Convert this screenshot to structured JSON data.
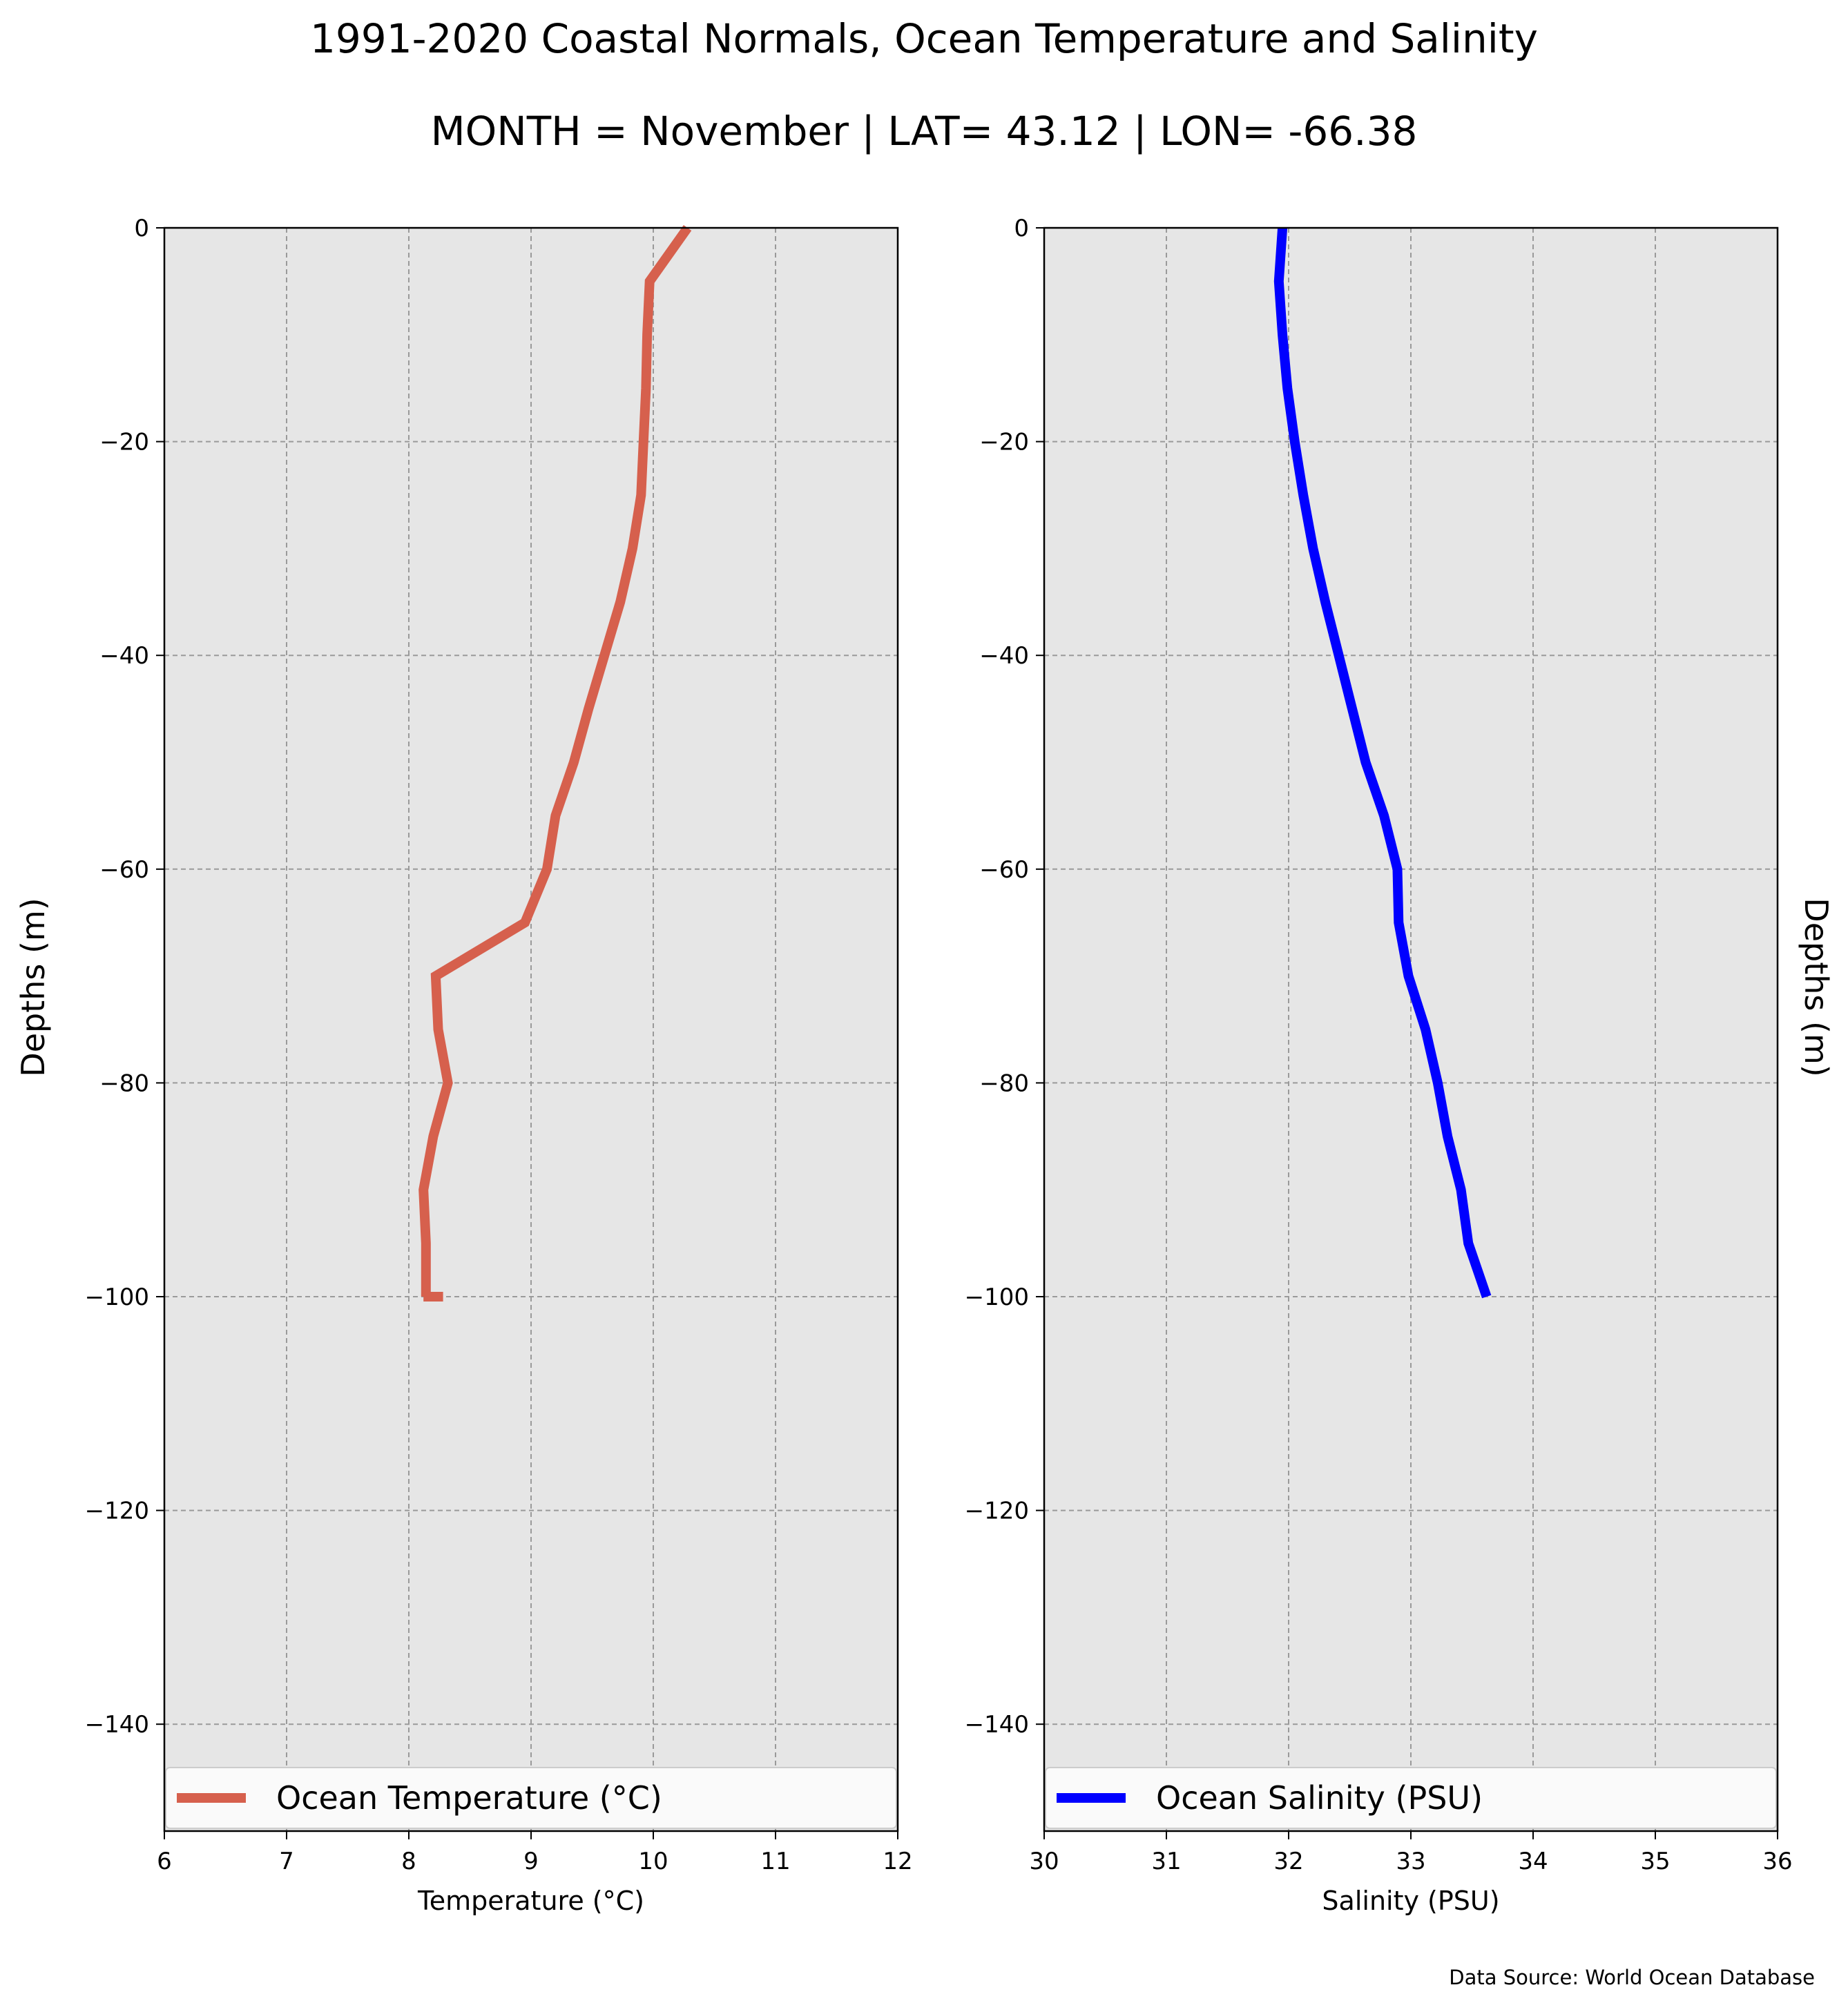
{
  "title": "1991-2020 Coastal Normals, Ocean Temperature and Salinity",
  "subtitle": "MONTH = November | LAT= 43.12 | LON= -66.38",
  "source": "Data Source: World Ocean Database",
  "chart_data": [
    {
      "type": "line",
      "xlabel": "Temperature (°C)",
      "ylabel": "Depths (m)",
      "xlim": [
        6,
        12
      ],
      "ylim": [
        -150,
        0
      ],
      "xticks": [
        "6",
        "7",
        "8",
        "9",
        "10",
        "11",
        "12"
      ],
      "yticks": [
        "0",
        "−20",
        "−40",
        "−60",
        "−80",
        "−100",
        "−120",
        "−140"
      ],
      "grid": true,
      "legend_position": "bottom",
      "series": [
        {
          "name": "Ocean Temperature (°C)",
          "color": "#d6604d",
          "x": [
            10.28,
            9.97,
            9.95,
            9.94,
            9.92,
            9.9,
            9.83,
            9.73,
            9.6,
            9.47,
            9.35,
            9.2,
            9.13,
            8.95,
            8.22,
            8.24,
            8.32,
            8.2,
            8.12,
            8.14,
            8.14,
            8.12,
            8.28
          ],
          "y": [
            0,
            -5,
            -10,
            -15,
            -20,
            -25,
            -30,
            -35,
            -40,
            -45,
            -50,
            -55,
            -60,
            -65,
            -70,
            -75,
            -80,
            -85,
            -90,
            -95,
            -100,
            -100,
            -100
          ]
        }
      ]
    },
    {
      "type": "line",
      "xlabel": "Salinity (PSU)",
      "ylabel": "Depths (m)",
      "xlim": [
        30,
        36
      ],
      "ylim": [
        -150,
        0
      ],
      "xticks": [
        "30",
        "31",
        "32",
        "33",
        "34",
        "35",
        "36"
      ],
      "yticks": [
        "0",
        "−20",
        "−40",
        "−60",
        "−80",
        "−100",
        "−120",
        "−140"
      ],
      "grid": true,
      "legend_position": "bottom",
      "series": [
        {
          "name": "Ocean Salinity (PSU)",
          "color": "#0000ff",
          "x": [
            31.95,
            31.92,
            31.95,
            31.99,
            32.05,
            32.12,
            32.2,
            32.3,
            32.41,
            32.52,
            32.63,
            32.78,
            32.89,
            32.9,
            32.98,
            33.12,
            33.22,
            33.3,
            33.41,
            33.47,
            33.62
          ],
          "y": [
            0,
            -5,
            -10,
            -15,
            -20,
            -25,
            -30,
            -35,
            -40,
            -45,
            -50,
            -55,
            -60,
            -65,
            -70,
            -75,
            -80,
            -85,
            -90,
            -95,
            -100
          ]
        }
      ]
    }
  ]
}
